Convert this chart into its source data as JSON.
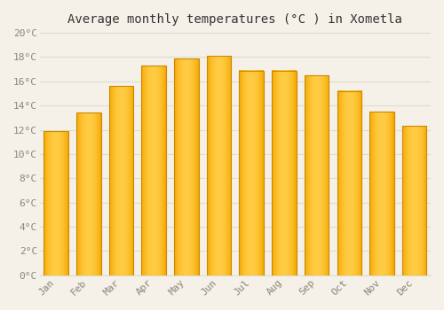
{
  "title": "Average monthly temperatures (°C ) in Xometla",
  "months": [
    "Jan",
    "Feb",
    "Mar",
    "Apr",
    "May",
    "Jun",
    "Jul",
    "Aug",
    "Sep",
    "Oct",
    "Nov",
    "Dec"
  ],
  "temperatures": [
    11.9,
    13.4,
    15.6,
    17.3,
    17.9,
    18.1,
    16.9,
    16.9,
    16.5,
    15.2,
    13.5,
    12.3
  ],
  "bar_color_light": "#FFCC44",
  "bar_color_dark": "#F5A800",
  "bar_edge_color": "#CC8800",
  "ylim": [
    0,
    20
  ],
  "ytick_step": 2,
  "background_color": "#F5F0E8",
  "plot_bg_color": "#F5F0E8",
  "grid_color": "#DDDDCC",
  "title_fontsize": 10,
  "tick_fontsize": 8,
  "tick_color": "#888877",
  "font_family": "monospace"
}
